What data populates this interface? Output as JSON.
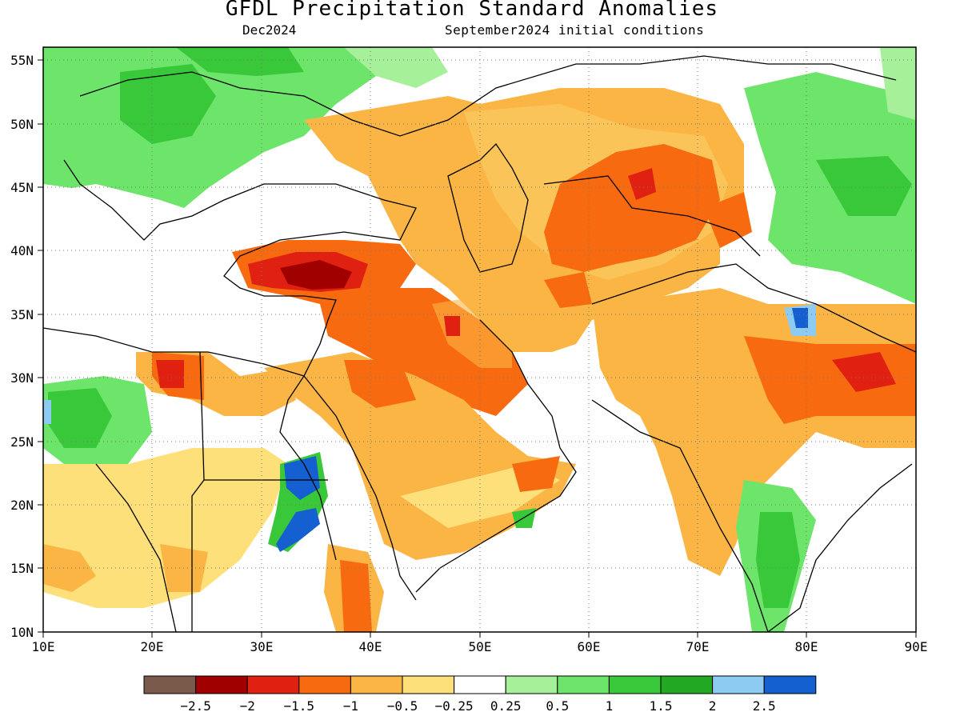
{
  "title": "GFDL Precipitation Standard Anomalies",
  "subtitle_left": "Dec2024",
  "subtitle_right": "September2024 initial conditions",
  "map": {
    "lon_labels": [
      "10E",
      "20E",
      "30E",
      "40E",
      "50E",
      "60E",
      "70E",
      "80E",
      "90E"
    ],
    "lat_labels": [
      "55N",
      "50N",
      "45N",
      "40N",
      "35N",
      "30N",
      "25N",
      "20N",
      "15N",
      "10N"
    ],
    "lon_range": [
      10,
      90
    ],
    "lat_range": [
      10,
      56
    ],
    "grid": "dotted"
  },
  "legend": {
    "colors": [
      "#7a5a4a",
      "#a00000",
      "#e02010",
      "#f86a10",
      "#fbb545",
      "#fde07a",
      "#ffffff",
      "#a6f09a",
      "#6ce56a",
      "#39c839",
      "#22a822",
      "#8ecbf2",
      "#1560d0"
    ],
    "labels": [
      "−2.5",
      "−2",
      "−1.5",
      "−1",
      "−0.5",
      "−0.25",
      "0.25",
      "0.5",
      "1",
      "1.5",
      "2",
      "2.5"
    ]
  }
}
